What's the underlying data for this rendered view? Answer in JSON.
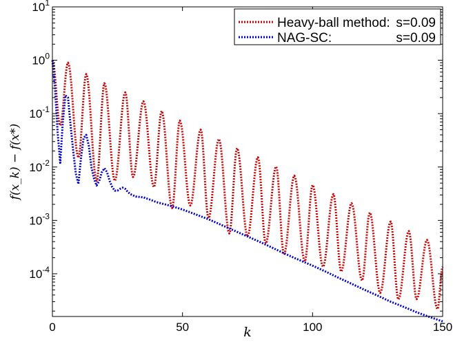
{
  "chart_data": {
    "type": "line",
    "title": "",
    "xlabel": "k",
    "ylabel": "f(x_k) − f(x*)",
    "xlim": [
      0,
      150
    ],
    "ylim_log10": [
      -4.8,
      1
    ],
    "y_scale": "log",
    "grid": false,
    "legend_position": "top-right",
    "x_ticks": [
      0,
      50,
      100,
      150
    ],
    "x_tick_labels": [
      "0",
      "50",
      "100",
      "150"
    ],
    "y_tick_exponents": [
      -4,
      -3,
      -2,
      -1,
      0,
      1
    ],
    "y_tick_base": "10",
    "y_tick_exponent_labels": [
      "-4",
      "-3",
      "-2",
      "-1",
      "0",
      "1"
    ],
    "series": [
      {
        "name": "Heavy-ball method:",
        "param_label": "s=0.09",
        "color": "#cc0000",
        "style": "dotted",
        "oscillation_period": 7.27,
        "peaks": [
          [
            0,
            1.0
          ],
          [
            6,
            0.9
          ],
          [
            13,
            0.55
          ],
          [
            20,
            0.37
          ],
          [
            28,
            0.25
          ],
          [
            35,
            0.17
          ],
          [
            42,
            0.112
          ],
          [
            49,
            0.074
          ],
          [
            57,
            0.05
          ],
          [
            64,
            0.0335
          ],
          [
            71,
            0.0225
          ],
          [
            79,
            0.0152
          ],
          [
            86,
            0.0102
          ],
          [
            93,
            0.0069
          ],
          [
            100,
            0.0046
          ],
          [
            108,
            0.0031
          ],
          [
            115,
            0.0021
          ],
          [
            122,
            0.0014
          ],
          [
            130,
            0.00095
          ],
          [
            137,
            0.00063
          ],
          [
            144,
            0.00043
          ],
          [
            150,
            0.000135
          ]
        ],
        "troughs": [
          [
            3,
            0.06
          ],
          [
            10,
            0.015
          ],
          [
            17,
            0.0055
          ],
          [
            24,
            0.0055
          ],
          [
            31,
            0.0065
          ],
          [
            39,
            0.0042
          ],
          [
            46,
            0.0017
          ],
          [
            53,
            0.0019
          ],
          [
            60,
            0.0011
          ],
          [
            68,
            0.00057
          ],
          [
            75,
            0.0005
          ],
          [
            82,
            0.00037
          ],
          [
            89,
            0.00023
          ],
          [
            97,
            0.00017
          ],
          [
            104,
            0.000135
          ],
          [
            111,
            0.00011
          ],
          [
            119,
            7.45e-05
          ],
          [
            126,
            4.38e-05
          ],
          [
            133,
            3.3e-05
          ],
          [
            140,
            3.35e-05
          ],
          [
            148,
            2.18e-05
          ]
        ]
      },
      {
        "name": "NAG-SC:",
        "param_label": "s=0.09",
        "color": "#0000cc",
        "style": "dotted",
        "points": [
          [
            0,
            1.0
          ],
          [
            1,
            0.3
          ],
          [
            2,
            0.045
          ],
          [
            3,
            0.012
          ],
          [
            4,
            0.07
          ],
          [
            5,
            0.22
          ],
          [
            6,
            0.2
          ],
          [
            7,
            0.06
          ],
          [
            8,
            0.02
          ],
          [
            9,
            0.0075
          ],
          [
            10,
            0.0048
          ],
          [
            11,
            0.015
          ],
          [
            12,
            0.035
          ],
          [
            13,
            0.04
          ],
          [
            14,
            0.025
          ],
          [
            15,
            0.01
          ],
          [
            16,
            0.006
          ],
          [
            17,
            0.0045
          ],
          [
            18,
            0.0055
          ],
          [
            19,
            0.008
          ],
          [
            20,
            0.0095
          ],
          [
            21,
            0.008
          ],
          [
            22,
            0.0055
          ],
          [
            23,
            0.0042
          ],
          [
            24,
            0.0036
          ],
          [
            25,
            0.0036
          ],
          [
            26,
            0.0039
          ],
          [
            27,
            0.0041
          ],
          [
            28,
            0.0039
          ],
          [
            29,
            0.0034
          ],
          [
            30,
            0.0031
          ],
          [
            32,
            0.0028
          ],
          [
            35,
            0.0027
          ],
          [
            38,
            0.0024
          ],
          [
            40,
            0.0022
          ],
          [
            45,
            0.0019
          ],
          [
            50,
            0.0016
          ],
          [
            55,
            0.0013
          ],
          [
            60,
            0.00105
          ],
          [
            65,
            0.00082
          ],
          [
            70,
            0.00064
          ],
          [
            75,
            0.0005
          ],
          [
            80,
            0.00039
          ],
          [
            85,
            0.0003
          ],
          [
            90,
            0.00023
          ],
          [
            95,
            0.00018
          ],
          [
            100,
            0.000142
          ],
          [
            105,
            0.00011
          ],
          [
            110,
            8.4e-05
          ],
          [
            115,
            6.5e-05
          ],
          [
            120,
            5e-05
          ],
          [
            125,
            3.9e-05
          ],
          [
            130,
            3e-05
          ],
          [
            135,
            2.4e-05
          ],
          [
            140,
            1.9e-05
          ],
          [
            145,
            1.55e-05
          ],
          [
            150,
            1.28e-05
          ]
        ]
      }
    ]
  }
}
